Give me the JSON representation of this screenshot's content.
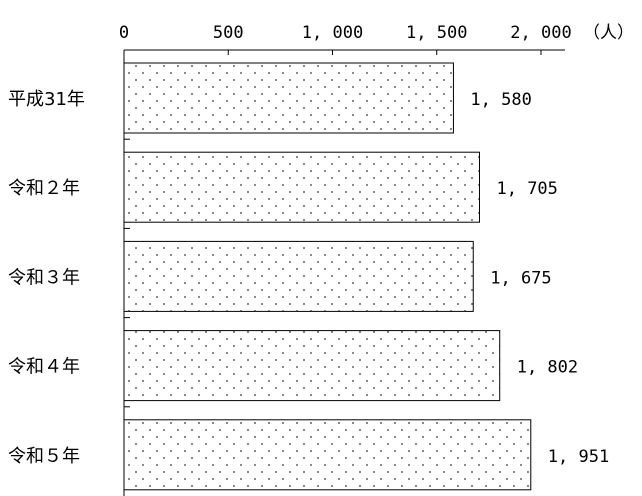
{
  "chart_data": {
    "type": "bar",
    "orientation": "horizontal",
    "categories": [
      "平成31年",
      "令和２年",
      "令和３年",
      "令和４年",
      "令和５年"
    ],
    "values": [
      1580,
      1705,
      1675,
      1802,
      1951
    ],
    "value_labels": [
      "1, 580",
      "1, 705",
      "1, 675",
      "1, 802",
      "1, 951"
    ],
    "x_ticks": [
      0,
      500,
      1000,
      1500,
      2000
    ],
    "x_tick_labels": [
      "0",
      "500",
      "1, 000",
      "1, 500",
      "2, 000"
    ],
    "xlim": [
      0,
      2000
    ],
    "unit": "（人）",
    "bar_fill": "#ffffff",
    "bar_dot_color": "#333333",
    "grid": false,
    "legend": "none"
  }
}
